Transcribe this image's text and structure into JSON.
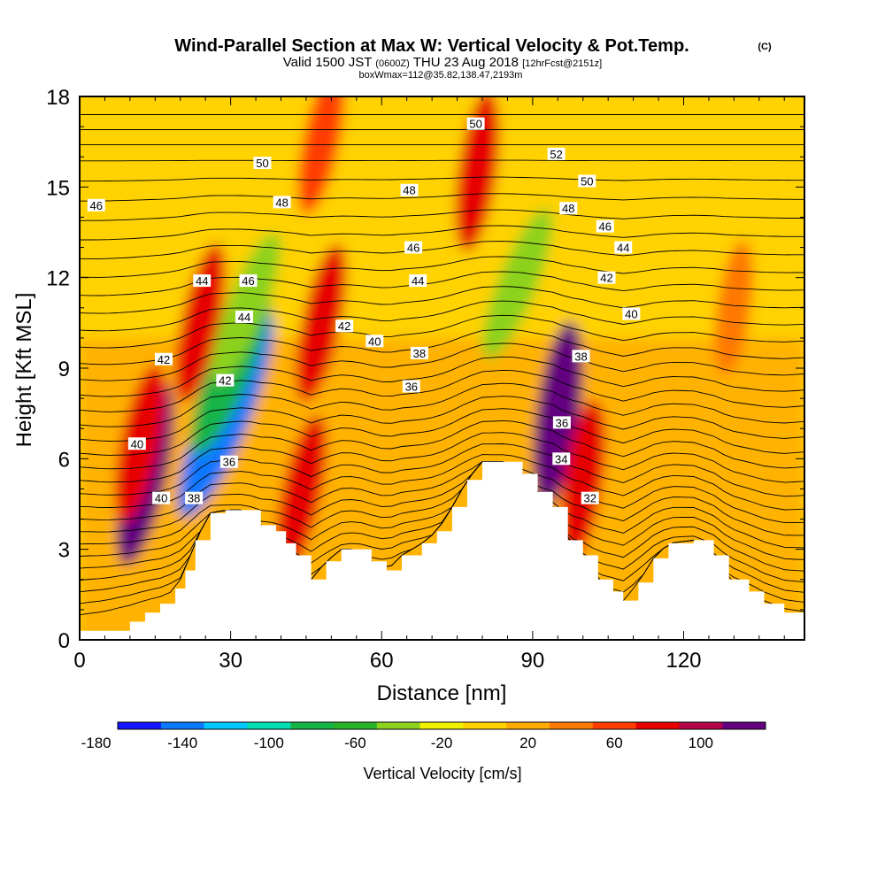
{
  "header": {
    "title": "Wind-Parallel Section at Max W: Vertical Velocity & Pot.Temp.",
    "title_mark": "(C)",
    "subtitle_valid": "Valid 1500 JST",
    "subtitle_utc": "(0600Z)",
    "subtitle_date": "THU 23 Aug 2018",
    "subtitle_fcst": "[12hrFcst@2151z]",
    "box_info": "boxWmax=112@35.82,138.47,2193m"
  },
  "chart_data": {
    "type": "heatmap",
    "xlabel": "Distance [nm]",
    "ylabel": "Height [Kft MSL]",
    "xlim": [
      0,
      144
    ],
    "ylim": [
      0,
      18
    ],
    "x_ticks": [
      0,
      30,
      60,
      90,
      120
    ],
    "y_ticks": [
      0,
      3,
      6,
      9,
      12,
      15,
      18
    ],
    "x_tick_labels": [
      "0",
      "30",
      "60",
      "90",
      "120"
    ],
    "y_tick_labels": [
      "0",
      "3",
      "6",
      "9",
      "12",
      "15",
      "18"
    ],
    "colorbar": {
      "label": "Vertical Velocity [cm/s]",
      "levels": [
        -180,
        -160,
        -140,
        -120,
        -100,
        -80,
        -60,
        -40,
        -20,
        0,
        20,
        40,
        60,
        80,
        100,
        120
      ],
      "tick_labels": [
        "-180",
        "-140",
        "-100",
        "-60",
        "-20",
        "20",
        "60",
        "100"
      ],
      "colors": [
        "#1414ff",
        "#0a78ff",
        "#00c8ff",
        "#00dcb4",
        "#14b446",
        "#28b428",
        "#8cd21e",
        "#f0f000",
        "#ffd200",
        "#ffaa00",
        "#ff7800",
        "#ff3c00",
        "#e60000",
        "#b40046",
        "#64007f"
      ]
    },
    "terrain_height_kft": [
      [
        0,
        0.3
      ],
      [
        5,
        0.3
      ],
      [
        10,
        0.6
      ],
      [
        13,
        0.9
      ],
      [
        16,
        1.2
      ],
      [
        19,
        1.7
      ],
      [
        21,
        2.3
      ],
      [
        23,
        3.3
      ],
      [
        26,
        4.2
      ],
      [
        29,
        4.3
      ],
      [
        33,
        4.3
      ],
      [
        36,
        3.8
      ],
      [
        39,
        3.6
      ],
      [
        41,
        3.2
      ],
      [
        43,
        2.8
      ],
      [
        46,
        2.0
      ],
      [
        49,
        2.6
      ],
      [
        52,
        3.0
      ],
      [
        55,
        3.0
      ],
      [
        58,
        2.6
      ],
      [
        61,
        2.3
      ],
      [
        64,
        2.8
      ],
      [
        68,
        3.2
      ],
      [
        71,
        3.6
      ],
      [
        74,
        4.4
      ],
      [
        77,
        5.3
      ],
      [
        80,
        5.9
      ],
      [
        85,
        5.9
      ],
      [
        88,
        5.5
      ],
      [
        91,
        4.9
      ],
      [
        94,
        4.4
      ],
      [
        97,
        3.3
      ],
      [
        100,
        2.8
      ],
      [
        103,
        2.0
      ],
      [
        106,
        1.6
      ],
      [
        108,
        1.3
      ],
      [
        111,
        1.9
      ],
      [
        114,
        2.7
      ],
      [
        117,
        3.2
      ],
      [
        122,
        3.3
      ],
      [
        126,
        2.8
      ],
      [
        129,
        2.0
      ],
      [
        133,
        1.6
      ],
      [
        136,
        1.2
      ],
      [
        140,
        0.9
      ],
      [
        144,
        0.9
      ]
    ],
    "potential_temperature_labels": [
      {
        "text": "46",
        "x": 3.3,
        "y": 14.4
      },
      {
        "text": "50",
        "x": 36.3,
        "y": 15.8
      },
      {
        "text": "48",
        "x": 40.2,
        "y": 14.5
      },
      {
        "text": "48",
        "x": 65.5,
        "y": 14.9
      },
      {
        "text": "50",
        "x": 78.7,
        "y": 17.1
      },
      {
        "text": "52",
        "x": 94.7,
        "y": 16.1
      },
      {
        "text": "50",
        "x": 100.8,
        "y": 15.2
      },
      {
        "text": "48",
        "x": 97.1,
        "y": 14.3
      },
      {
        "text": "46",
        "x": 104.4,
        "y": 13.7
      },
      {
        "text": "44",
        "x": 108.0,
        "y": 13.0
      },
      {
        "text": "46",
        "x": 66.3,
        "y": 13.0
      },
      {
        "text": "44",
        "x": 24.3,
        "y": 11.9
      },
      {
        "text": "46",
        "x": 33.5,
        "y": 11.9
      },
      {
        "text": "44",
        "x": 67.2,
        "y": 11.9
      },
      {
        "text": "42",
        "x": 104.7,
        "y": 12.0
      },
      {
        "text": "44",
        "x": 32.7,
        "y": 10.7
      },
      {
        "text": "42",
        "x": 52.6,
        "y": 10.4
      },
      {
        "text": "40",
        "x": 109.6,
        "y": 10.8
      },
      {
        "text": "40",
        "x": 58.6,
        "y": 9.9
      },
      {
        "text": "38",
        "x": 67.5,
        "y": 9.5
      },
      {
        "text": "42",
        "x": 16.7,
        "y": 9.3
      },
      {
        "text": "38",
        "x": 99.6,
        "y": 9.4
      },
      {
        "text": "42",
        "x": 28.9,
        "y": 8.6
      },
      {
        "text": "36",
        "x": 65.9,
        "y": 8.4
      },
      {
        "text": "40",
        "x": 11.4,
        "y": 6.5
      },
      {
        "text": "36",
        "x": 95.8,
        "y": 7.2
      },
      {
        "text": "36",
        "x": 29.7,
        "y": 5.9
      },
      {
        "text": "34",
        "x": 95.7,
        "y": 6.0
      },
      {
        "text": "40",
        "x": 16.2,
        "y": 4.7
      },
      {
        "text": "38",
        "x": 22.7,
        "y": 4.7
      },
      {
        "text": "32",
        "x": 101.4,
        "y": 4.7
      }
    ],
    "velocity_regions_cm_s": [
      {
        "x": 13,
        "y": 5.5,
        "value": 100
      },
      {
        "x": 12,
        "y": 6.5,
        "value": 60
      },
      {
        "x": 24,
        "y": 10.5,
        "value": 60
      },
      {
        "x": 29,
        "y": 7.5,
        "value": -160
      },
      {
        "x": 30,
        "y": 9.0,
        "value": -100
      },
      {
        "x": 33,
        "y": 11.0,
        "value": -60
      },
      {
        "x": 48,
        "y": 10.5,
        "value": 60
      },
      {
        "x": 44,
        "y": 4.8,
        "value": 60
      },
      {
        "x": 79,
        "y": 15.5,
        "value": 60
      },
      {
        "x": 87,
        "y": 11.8,
        "value": -60
      },
      {
        "x": 95,
        "y": 7.5,
        "value": 100
      },
      {
        "x": 100,
        "y": 5.3,
        "value": 60
      },
      {
        "x": 48,
        "y": 16.5,
        "value": 40
      },
      {
        "x": 130,
        "y": 11.0,
        "value": 20
      }
    ]
  }
}
